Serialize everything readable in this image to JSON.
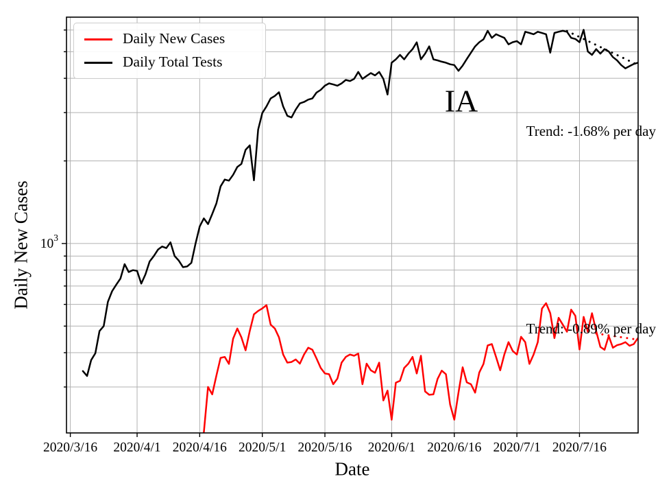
{
  "title": "IA",
  "axes": {
    "xlabel": "Date",
    "ylabel": "Daily New Cases"
  },
  "annotations": {
    "tests_trend": "Trend: -1.68% per day",
    "cases_trend": "Trend: -0.89% per day"
  },
  "legend": {
    "items": [
      {
        "label": "Daily New Cases",
        "color": "#ff0000"
      },
      {
        "label": "Daily Total Tests",
        "color": "#000000"
      }
    ]
  },
  "colors": {
    "grid": "#b0b0b0",
    "spine": "#000000",
    "cases": "#ff0000",
    "tests": "#000000"
  },
  "chart_data": {
    "type": "line",
    "title": "IA",
    "xlabel": "Date",
    "ylabel": "Daily New Cases",
    "yscale": "log",
    "grid": true,
    "legend_position": "upper left",
    "ylim": [
      204,
      6683
    ],
    "xlim_days": [
      -0.92,
      136.05
    ],
    "x_ticks": [
      "2020/3/16",
      "2020/4/1",
      "2020/4/16",
      "2020/5/1",
      "2020/5/16",
      "2020/6/1",
      "2020/6/16",
      "2020/7/1",
      "2020/7/16"
    ],
    "x_tick_days": [
      0,
      16,
      31,
      46,
      61,
      77,
      92,
      107,
      122
    ],
    "y_major_tick": {
      "label_base": "10",
      "label_exp": "3",
      "value": 1000
    },
    "y_gridlines": [
      300,
      400,
      500,
      600,
      700,
      800,
      900,
      1000,
      2000,
      3000,
      4000,
      5000,
      6000
    ],
    "series": [
      {
        "name": "Daily Total Tests",
        "key": "daily-total-tests",
        "color": "#000000",
        "style": "solid",
        "start_day": 3,
        "values": [
          343,
          329,
          376,
          398,
          480,
          500,
          613,
          670,
          708,
          745,
          841,
          787,
          800,
          795,
          714,
          772,
          860,
          900,
          950,
          975,
          962,
          1010,
          900,
          866,
          820,
          825,
          850,
          1000,
          1155,
          1235,
          1177,
          1280,
          1400,
          1615,
          1710,
          1695,
          1780,
          1900,
          1950,
          2195,
          2280,
          1700,
          2600,
          2990,
          3160,
          3380,
          3450,
          3560,
          3160,
          2920,
          2880,
          3075,
          3240,
          3280,
          3345,
          3380,
          3550,
          3630,
          3760,
          3835,
          3800,
          3760,
          3835,
          3945,
          3910,
          3980,
          4220,
          3980,
          4080,
          4180,
          4100,
          4220,
          3980,
          3490,
          4560,
          4690,
          4870,
          4690,
          4920,
          5110,
          5410,
          4690,
          4920,
          5230,
          4690,
          4650,
          4600,
          4560,
          4500,
          4470,
          4260,
          4450,
          4700,
          4960,
          5230,
          5415,
          5550,
          5960,
          5615,
          5790,
          5700,
          5615,
          5320,
          5415,
          5465,
          5320,
          5910,
          5855,
          5790,
          5910,
          5850,
          5790,
          4960,
          5855,
          5910,
          5960,
          5910,
          5615,
          5565,
          5415,
          6010,
          5010,
          4870,
          5110,
          4920,
          5110,
          5010,
          4780,
          4650,
          4470,
          4350,
          4430,
          4510,
          4560
        ]
      },
      {
        "name": "Daily New Cases",
        "key": "daily-new-cases",
        "color": "#ff0000",
        "style": "solid",
        "start_day": 31,
        "values": [
          185,
          205,
          300,
          282,
          330,
          383,
          386,
          364,
          450,
          490,
          455,
          408,
          480,
          552,
          568,
          580,
          596,
          506,
          490,
          455,
          394,
          368,
          370,
          378,
          365,
          394,
          417,
          410,
          381,
          352,
          336,
          334,
          307,
          322,
          368,
          386,
          394,
          390,
          397,
          307,
          365,
          345,
          338,
          368,
          268,
          291,
          228,
          311,
          316,
          352,
          365,
          386,
          336,
          390,
          289,
          281,
          282,
          321,
          344,
          334,
          259,
          228,
          286,
          354,
          312,
          307,
          286,
          339,
          364,
          425,
          430,
          386,
          345,
          394,
          437,
          406,
          394,
          457,
          437,
          364,
          394,
          437,
          579,
          606,
          557,
          452,
          536,
          506,
          477,
          574,
          545,
          411,
          540,
          477,
          557,
          480,
          420,
          410,
          460,
          417,
          426,
          430,
          437,
          424,
          430,
          452
        ]
      }
    ],
    "fits": [
      {
        "name": "tests-trend-fit",
        "color": "#000000",
        "rate_label": "-1.68% per day",
        "start_day": 119,
        "end_day": 136.3,
        "start_value": 5950,
        "end_value": 4450
      },
      {
        "name": "cases-trend-fit",
        "color": "#ff0000",
        "rate_label": "-0.89% per day",
        "start_day": 126,
        "end_day": 136.5,
        "start_value": 470,
        "end_value": 445
      }
    ]
  }
}
